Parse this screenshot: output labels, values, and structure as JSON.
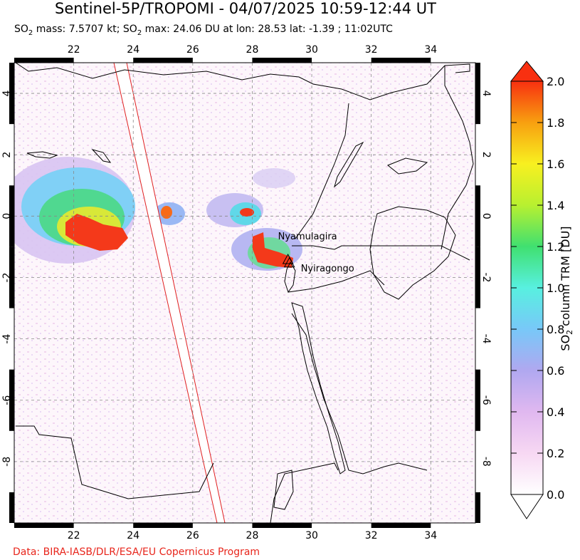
{
  "header": {
    "title": "Sentinel-5P/TROPOMI - 04/07/2025 10:59-12:44 UT",
    "so2_mass_prefix": "SO",
    "so2_mass_sub": "2",
    "so2_mass_text": " mass: 7.5707 kt; SO",
    "so2_max_sub": "2",
    "so2_max_text": " max: 24.06 DU at lon: 28.53 lat: -1.39 ; 11:02UTC"
  },
  "map": {
    "lon_ticks": [
      "22",
      "24",
      "26",
      "28",
      "30",
      "32",
      "34"
    ],
    "lat_ticks": [
      "4",
      "2",
      "0",
      "-2",
      "-4",
      "-6",
      "-8"
    ],
    "volcanoes": [
      {
        "name": "Nyamulagira",
        "lon": 29.2,
        "lat": -1.41
      },
      {
        "name": "Nyiragongo",
        "lon": 29.25,
        "lat": -1.52
      }
    ]
  },
  "colorbar": {
    "ticks": [
      "0.0",
      "0.2",
      "0.4",
      "0.6",
      "0.8",
      "1.0",
      "1.2",
      "1.4",
      "1.6",
      "1.8",
      "2.0"
    ],
    "label_prefix": "SO",
    "label_sub": "2",
    "label_text": " column TRM [DU]",
    "colors": [
      "#ffffff",
      "#f7d8f3",
      "#e0b8f0",
      "#b0a8f0",
      "#78c8f8",
      "#58f0e0",
      "#40e070",
      "#b8f030",
      "#f8f020",
      "#f8a010",
      "#f83010"
    ]
  },
  "credit": "Data: BIRA-IASB/DLR/ESA/EU Copernicus Program"
}
